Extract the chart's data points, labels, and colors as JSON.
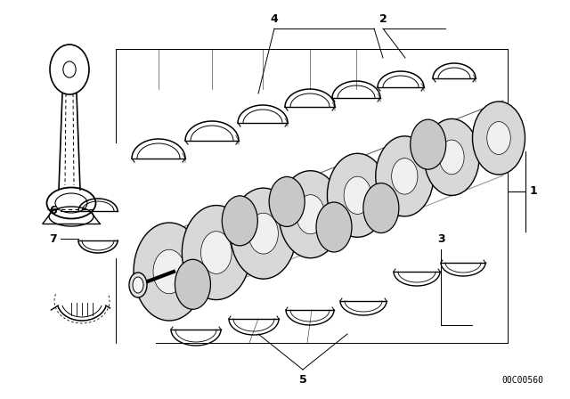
{
  "bg_color": "#ffffff",
  "line_color": "#000000",
  "figure_width": 6.4,
  "figure_height": 4.48,
  "dpi": 100,
  "diagram_code": "00C00560"
}
